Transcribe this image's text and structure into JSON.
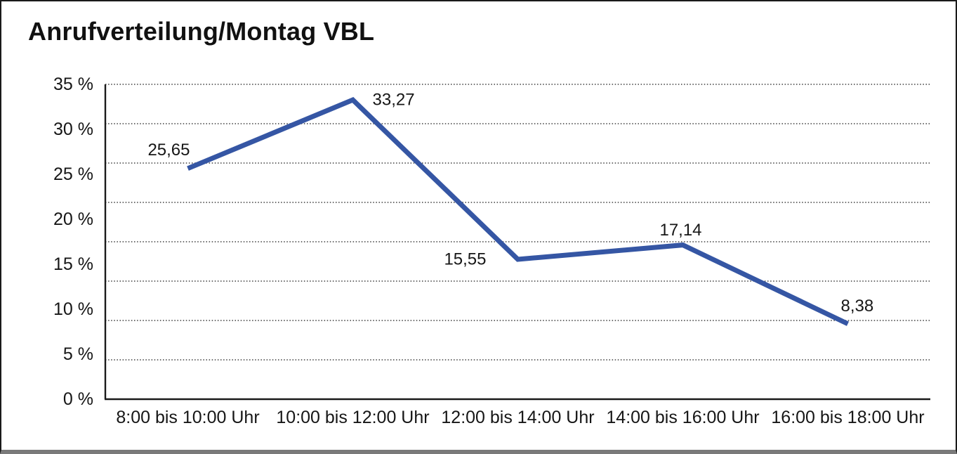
{
  "title": "Anrufverteilung/Montag VBL",
  "chart_data": {
    "type": "line",
    "title": "Anrufverteilung/Montag VBL",
    "categories": [
      "8:00 bis 10:00 Uhr",
      "10:00 bis 12:00 Uhr",
      "12:00 bis 14:00 Uhr",
      "14:00 bis 16:00 Uhr",
      "16:00 bis 18:00 Uhr"
    ],
    "values": [
      25.65,
      33.27,
      15.55,
      17.14,
      8.38
    ],
    "point_labels": [
      "25,65",
      "33,27",
      "15,55",
      "17,14",
      "8,38"
    ],
    "y_ticks": [
      "0 %",
      "5 %",
      "10 %",
      "15 %",
      "20 %",
      "25 %",
      "30 %",
      "35 %"
    ],
    "ylim": [
      0,
      35
    ],
    "y_tick_step": 5,
    "xlabel": "",
    "ylabel": "",
    "legend": "none",
    "grid": "horizontal-dotted",
    "gridline_intervals": 8,
    "colors": {
      "line": "#3556A4",
      "grid": "#3c3c3c",
      "axis": "#1a1a1a",
      "text": "#161616",
      "frame_border": "#1a1a1a",
      "frame_shadow": "#7a7a7a",
      "background": "#ffffff"
    }
  }
}
